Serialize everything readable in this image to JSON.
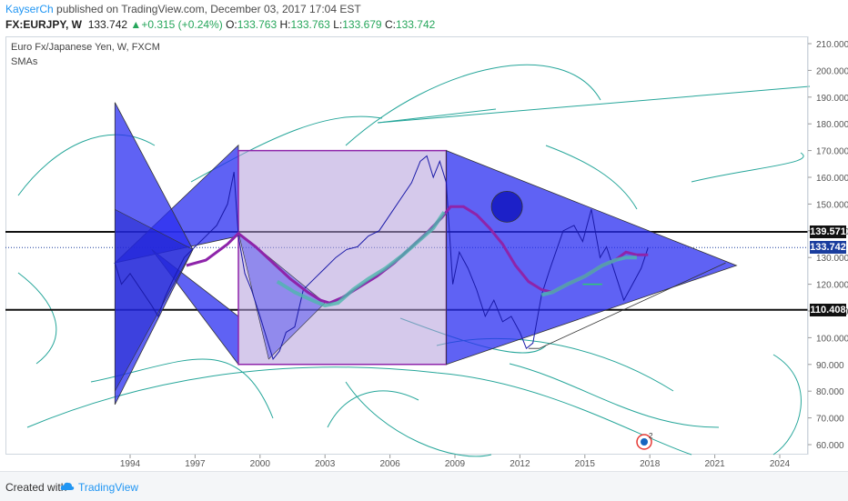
{
  "header": {
    "author": "KayserCh",
    "published_text": "published on TradingView.com, December 03, 2017 17:04 EST",
    "symbol": "FX:EURJPY, W",
    "last": "133.742",
    "change_arrow": "▲",
    "change": "+0.315 (+0.24%)",
    "o_label": "O:",
    "o_value": "133.763",
    "h_label": "H:",
    "h_value": "133.763",
    "l_label": "L:",
    "l_value": "133.679",
    "c_label": "C:",
    "c_value": "133.742"
  },
  "chart_title": "Euro Fx/Japanese Yen, W, FXCM",
  "indicator_label": "SMAs",
  "footer": {
    "created_with": "Created with",
    "brand": "TradingView"
  },
  "colors": {
    "accent": "#2196f3",
    "up": "#26a65b",
    "shape_fill": "#2a2ef0",
    "box_fill": "#b39ddb",
    "sma_purple": "#8e24aa",
    "sma_teal": "#4db6ac",
    "drawing_green": "#26a69a"
  },
  "chart_data": {
    "type": "line",
    "xlabel": "",
    "ylabel": "",
    "ylim": [
      55,
      213
    ],
    "xlim": [
      1991,
      2027
    ],
    "y_ticks": [
      "210.000",
      "200.000",
      "190.000",
      "180.000",
      "170.000",
      "160.000",
      "150.000",
      "140.000",
      "130.000",
      "120.000",
      "110.000",
      "100.000",
      "90.000",
      "80.000",
      "70.000",
      "60.000"
    ],
    "y_tick_values": [
      210,
      200,
      190,
      180,
      170,
      160,
      150,
      140,
      130,
      120,
      110,
      100,
      90,
      80,
      70,
      60
    ],
    "x_ticks": [
      "1994",
      "1997",
      "2000",
      "2003",
      "2006",
      "2009",
      "2012",
      "2015",
      "2018",
      "2021",
      "2024"
    ],
    "x_tick_values": [
      1994,
      1997,
      2000,
      2003,
      2006,
      2009,
      2012,
      2015,
      2018,
      2021,
      2024
    ],
    "horizontal_levels": [
      {
        "value": 139.571,
        "label": "139.571",
        "color": "#111111"
      },
      {
        "value": 110.408,
        "label": "110.408",
        "color": "#111111"
      },
      {
        "value": 133.742,
        "label": "133.742",
        "color": "#1a3d9e",
        "style": "dotted"
      }
    ],
    "series": [
      {
        "type": "price",
        "x": [
          1993.3,
          1993.6,
          1994.0,
          1994.5,
          1995.0,
          1995.3,
          1995.6,
          1996.0,
          1996.5,
          1997.0,
          1997.5,
          1998.0,
          1998.5,
          1998.8,
          1999.0,
          1999.3,
          1999.6,
          2000.0,
          2000.3,
          2000.6,
          2000.9,
          2001.2,
          2001.6,
          2002.0,
          2002.5,
          2003.0,
          2003.5,
          2004.0,
          2004.5,
          2005.0,
          2005.5,
          2006.0,
          2006.5,
          2007.0,
          2007.4,
          2007.7,
          2008.0,
          2008.3,
          2008.6,
          2008.9,
          2009.2,
          2009.6,
          2010.0,
          2010.4,
          2010.8,
          2011.2,
          2011.6,
          2012.0,
          2012.3,
          2012.6,
          2013.0,
          2013.4,
          2014.0,
          2014.5,
          2014.9,
          2015.3,
          2015.7,
          2016.0,
          2016.4,
          2016.8,
          2017.2,
          2017.6,
          2017.92
        ],
        "y": [
          128,
          120,
          124,
          118,
          112,
          108,
          115,
          122,
          130,
          134,
          138,
          142,
          150,
          162,
          138,
          124,
          118,
          108,
          100,
          92,
          95,
          102,
          104,
          118,
          122,
          126,
          130,
          133,
          134,
          138,
          140,
          146,
          152,
          158,
          166,
          168,
          160,
          166,
          158,
          120,
          132,
          126,
          118,
          108,
          114,
          106,
          108,
          102,
          96,
          98,
          116,
          126,
          140,
          142,
          136,
          148,
          130,
          134,
          124,
          114,
          120,
          126,
          133.7
        ]
      }
    ],
    "sma_purple": {
      "x": [
        1996.6,
        1997.5,
        1998.5,
        1999.0,
        1999.8,
        2000.6,
        2001.4,
        2002.2,
        2002.8,
        2003.2,
        2003.8,
        2004.6,
        2005.4,
        2006.2,
        2007.0,
        2007.8,
        2008.4,
        2008.8,
        2009.4,
        2010.0,
        2010.6,
        2011.2,
        2011.8,
        2012.4,
        2013.0,
        2013.5,
        2014.2,
        2015.0,
        2015.8,
        2016.4,
        2016.9,
        2017.4,
        2017.92
      ],
      "y": [
        127,
        129,
        135,
        139,
        134,
        128,
        122,
        117,
        114,
        113,
        115,
        119,
        123,
        128,
        134,
        140,
        145,
        149,
        149,
        146,
        141,
        135,
        127,
        121,
        118,
        117,
        120,
        123,
        127,
        129,
        132,
        131,
        131
      ]
    },
    "sma_teal": {
      "x": [
        2000.8,
        2001.6,
        2002.4,
        2003.0,
        2003.6,
        2004.3,
        2005.0,
        2005.8,
        2006.6,
        2007.3,
        2008.0,
        2008.5,
        2013.0,
        2013.5,
        2014.2,
        2015.0,
        2015.8,
        2016.4,
        2016.9,
        2017.4
      ],
      "y": [
        121,
        117,
        114,
        112,
        113,
        118,
        122,
        126,
        131,
        136,
        141,
        147,
        116,
        117,
        120,
        123,
        127,
        129,
        130,
        130
      ]
    },
    "shapes": {
      "tail_triangle": [
        [
          1993.3,
          188
        ],
        [
          1993.3,
          75
        ],
        [
          1996.9,
          133
        ]
      ],
      "rear_fin": [
        [
          1993.3,
          128
        ],
        [
          1995.9,
          147
        ],
        [
          1997.8,
          146
        ],
        [
          1999.0,
          172
        ]
      ],
      "body_box": [
        [
          1999.0,
          170
        ],
        [
          2008.6,
          170
        ],
        [
          2008.6,
          90
        ],
        [
          1999.0,
          90
        ]
      ],
      "head_triangle": [
        [
          2008.6,
          170
        ],
        [
          2008.6,
          90
        ],
        [
          2022.0,
          127
        ]
      ],
      "eye": [
        2011.4,
        149,
        4
      ]
    }
  }
}
